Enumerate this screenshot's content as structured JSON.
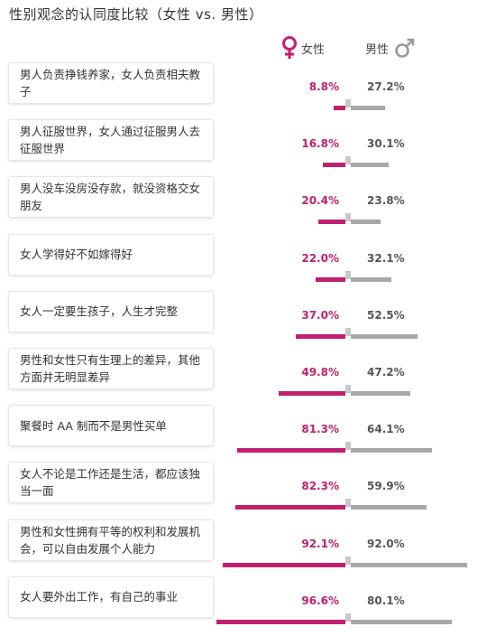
{
  "title": "性别观念的认同度比较（女性 vs. 男性）",
  "legend": {
    "female_label": "女性",
    "male_label": "男性",
    "female_icon": "female-symbol-icon",
    "male_icon": "male-symbol-icon",
    "female_color": "#c2206e",
    "male_color": "#a8a8a8"
  },
  "chart_data": {
    "type": "bar",
    "title": "性别观念的认同度比较（女性 vs. 男性）",
    "orientation": "diverging-horizontal",
    "unit": "%",
    "categories": [
      "男人负责挣钱养家，女人负责相夫教子",
      "男人征服世界，女人通过征服男人去征服世界",
      "男人没车没房没存款，就没资格交女朋友",
      "女人学得好不如嫁得好",
      "女人一定要生孩子，人生才完整",
      "男性和女性只有生理上的差异，其他方面并无明显差异",
      "聚餐时 AA 制而不是男性买单",
      "女人不论是工作还是生活，都应该独当一面",
      "男性和女性拥有平等的权利和发展机会，可以自由发展个人能力",
      "女人要外出工作，有自己的事业"
    ],
    "series": [
      {
        "name": "女性",
        "values": [
          8.8,
          16.8,
          20.4,
          22.0,
          37.0,
          49.8,
          81.3,
          82.3,
          92.1,
          96.6
        ],
        "labels": [
          "8.8%",
          "16.8%",
          "20.4%",
          "22.0%",
          "37.0%",
          "49.8%",
          "81.3%",
          "82.3%",
          "92.1%",
          "96.6%"
        ]
      },
      {
        "name": "男性",
        "values": [
          27.2,
          30.1,
          23.8,
          32.1,
          52.5,
          47.2,
          64.1,
          59.9,
          92.0,
          80.1
        ],
        "labels": [
          "27.2%",
          "30.1%",
          "23.8%",
          "32.1%",
          "52.5%",
          "47.2%",
          "64.1%",
          "59.9%",
          "92.0%",
          "80.1%"
        ]
      }
    ],
    "xlim": [
      0,
      100
    ]
  }
}
